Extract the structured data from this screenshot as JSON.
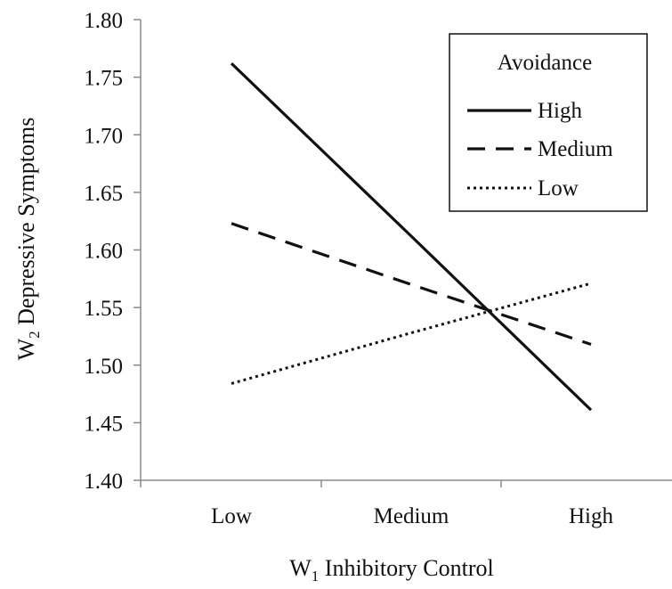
{
  "chart_data": {
    "type": "line",
    "x_title": "W",
    "x_title_sub": "1",
    "x_title_rest": " Inhibitory Control",
    "y_title": "W",
    "y_title_sub": "2",
    "y_title_rest": " Depressive Symptoms",
    "categories": [
      "Low",
      "Medium",
      "High"
    ],
    "ylim": [
      1.4,
      1.8
    ],
    "yticks": [
      "1.40",
      "1.45",
      "1.50",
      "1.55",
      "1.60",
      "1.65",
      "1.70",
      "1.75",
      "1.80"
    ],
    "grid": false,
    "legend": {
      "title": "Avoidance",
      "placement": "top-right"
    },
    "series": [
      {
        "name": "High",
        "style": "solid",
        "values": [
          1.762,
          1.612,
          1.461
        ]
      },
      {
        "name": "Medium",
        "style": "dashed",
        "values": [
          1.623,
          1.57,
          1.518
        ]
      },
      {
        "name": "Low",
        "style": "dotted",
        "values": [
          1.484,
          1.528,
          1.571
        ]
      }
    ]
  }
}
